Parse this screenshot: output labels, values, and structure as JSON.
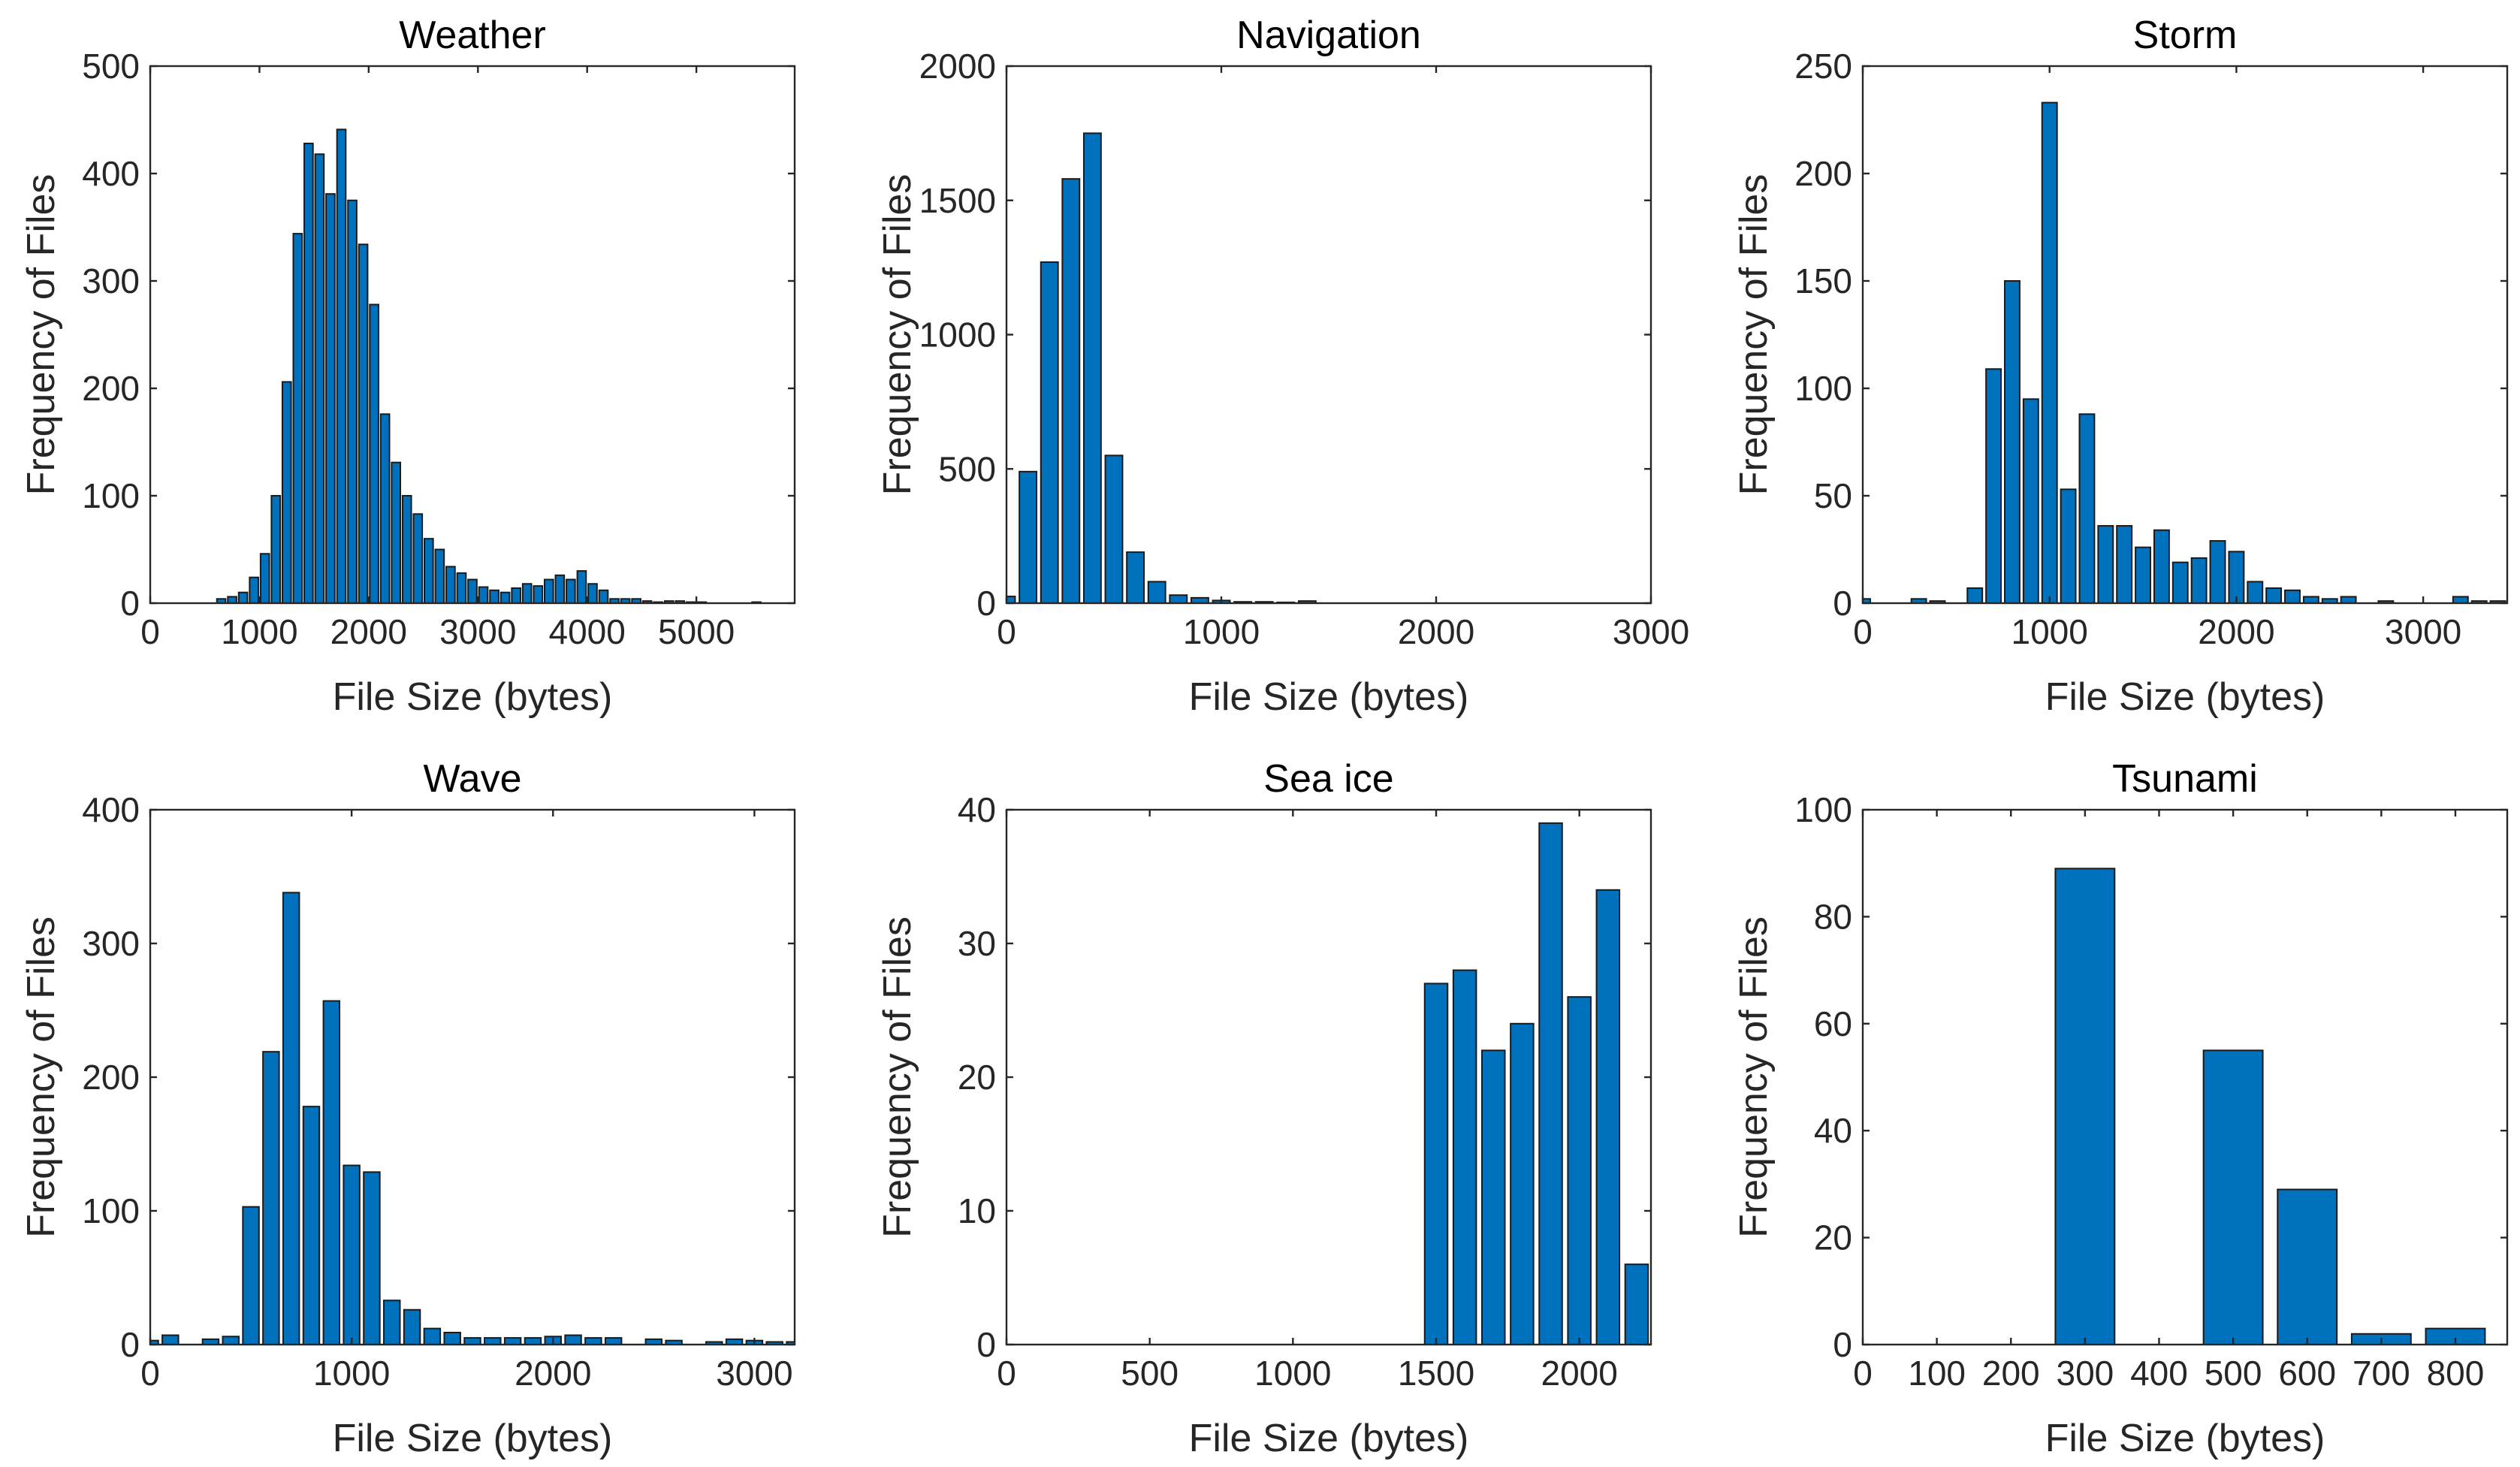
{
  "figure": {
    "bar_color": "#0072BD",
    "edge_color": "#1a1a1a",
    "axis_color": "#262626"
  },
  "chart_data": [
    {
      "type": "bar",
      "title": "Weather",
      "xlabel": "File Size (bytes)",
      "ylabel": "Frequency of Files",
      "xlim": [
        0,
        5900
      ],
      "ylim": [
        0,
        500
      ],
      "xticks": [
        0,
        1000,
        2000,
        3000,
        4000,
        5000
      ],
      "xtick_labels": [
        "0",
        "1000",
        "2000",
        "3000",
        "4000",
        "5000"
      ],
      "yticks": [
        0,
        100,
        200,
        300,
        400,
        500
      ],
      "ytick_labels": [
        "0",
        "100",
        "200",
        "300",
        "400",
        "500"
      ],
      "bin_width": 100,
      "x": [
        650,
        750,
        850,
        950,
        1050,
        1150,
        1250,
        1350,
        1450,
        1550,
        1650,
        1750,
        1850,
        1950,
        2050,
        2150,
        2250,
        2350,
        2450,
        2550,
        2650,
        2750,
        2850,
        2950,
        3050,
        3150,
        3250,
        3350,
        3450,
        3550,
        3650,
        3750,
        3850,
        3950,
        4050,
        4150,
        4250,
        4350,
        4450,
        4550,
        4650,
        4750,
        4850,
        4950,
        5050,
        5550
      ],
      "values": [
        4,
        6,
        10,
        24,
        46,
        100,
        206,
        344,
        428,
        418,
        381,
        441,
        375,
        334,
        278,
        176,
        131,
        100,
        83,
        60,
        50,
        34,
        28,
        22,
        15,
        12,
        10,
        14,
        18,
        16,
        22,
        26,
        22,
        30,
        18,
        12,
        4,
        4,
        4,
        2,
        1,
        2,
        2,
        1,
        1,
        1
      ]
    },
    {
      "type": "bar",
      "title": "Navigation",
      "xlabel": "File Size (bytes)",
      "ylabel": "Frequency of Files",
      "xlim": [
        0,
        3000
      ],
      "ylim": [
        0,
        2000
      ],
      "xticks": [
        0,
        1000,
        2000,
        3000
      ],
      "xtick_labels": [
        "0",
        "1000",
        "2000",
        "3000"
      ],
      "yticks": [
        0,
        500,
        1000,
        1500,
        2000
      ],
      "ytick_labels": [
        "0",
        "500",
        "1000",
        "1500",
        "2000"
      ],
      "bin_width": 100,
      "x": [
        0,
        100,
        200,
        300,
        400,
        500,
        600,
        700,
        800,
        900,
        1000,
        1100,
        1200,
        1300,
        1400
      ],
      "values": [
        25,
        490,
        1270,
        1580,
        1750,
        550,
        190,
        80,
        30,
        20,
        10,
        5,
        5,
        3,
        8
      ]
    },
    {
      "type": "bar",
      "title": "Storm",
      "xlabel": "File Size (bytes)",
      "ylabel": "Frequency of Files",
      "xlim": [
        0,
        3450
      ],
      "ylim": [
        0,
        250
      ],
      "xticks": [
        0,
        1000,
        2000,
        3000
      ],
      "xtick_labels": [
        "0",
        "1000",
        "2000",
        "3000"
      ],
      "yticks": [
        0,
        50,
        100,
        150,
        200,
        250
      ],
      "ytick_labels": [
        "0",
        "50",
        "100",
        "150",
        "200",
        "250"
      ],
      "bin_width": 100,
      "x": [
        0,
        300,
        400,
        600,
        700,
        800,
        900,
        1000,
        1100,
        1200,
        1300,
        1400,
        1500,
        1600,
        1700,
        1800,
        1900,
        2000,
        2100,
        2200,
        2300,
        2400,
        2500,
        2600,
        2800,
        3200,
        3300,
        3400
      ],
      "values": [
        2,
        2,
        1,
        7,
        109,
        150,
        95,
        233,
        53,
        88,
        36,
        36,
        26,
        34,
        19,
        21,
        29,
        24,
        10,
        7,
        6,
        3,
        2,
        3,
        1,
        3,
        1,
        1
      ]
    },
    {
      "type": "bar",
      "title": "Wave",
      "xlabel": "File Size (bytes)",
      "ylabel": "Frequency of Files",
      "xlim": [
        0,
        3200
      ],
      "ylim": [
        0,
        400
      ],
      "xticks": [
        0,
        1000,
        2000,
        3000
      ],
      "xtick_labels": [
        "0",
        "1000",
        "2000",
        "3000"
      ],
      "yticks": [
        0,
        100,
        200,
        300,
        400
      ],
      "ytick_labels": [
        "0",
        "100",
        "200",
        "300",
        "400"
      ],
      "bin_width": 100,
      "x": [
        0,
        100,
        300,
        400,
        500,
        600,
        700,
        800,
        900,
        1000,
        1100,
        1200,
        1300,
        1400,
        1500,
        1600,
        1700,
        1800,
        1900,
        2000,
        2100,
        2200,
        2300,
        2500,
        2600,
        2800,
        2900,
        3000,
        3100,
        3200
      ],
      "values": [
        3,
        7,
        4,
        6,
        103,
        219,
        338,
        178,
        257,
        134,
        129,
        33,
        26,
        12,
        9,
        5,
        5,
        5,
        5,
        6,
        7,
        5,
        5,
        4,
        3,
        2,
        4,
        3,
        2,
        2
      ]
    },
    {
      "type": "bar",
      "title": "Sea ice",
      "xlabel": "File Size (bytes)",
      "ylabel": "Frequency of Files",
      "xlim": [
        0,
        2250
      ],
      "ylim": [
        0,
        40
      ],
      "xticks": [
        0,
        500,
        1000,
        1500,
        2000
      ],
      "xtick_labels": [
        "0",
        "500",
        "1000",
        "1500",
        "2000"
      ],
      "yticks": [
        0,
        10,
        20,
        30,
        40
      ],
      "ytick_labels": [
        "0",
        "10",
        "20",
        "30",
        "40"
      ],
      "bin_width": 100,
      "x": [
        1500,
        1600,
        1700,
        1800,
        1900,
        2000,
        2100,
        2200
      ],
      "values": [
        27,
        28,
        22,
        24,
        39,
        26,
        34,
        6
      ]
    },
    {
      "type": "bar",
      "title": "Tsunami",
      "xlabel": "File Size (bytes)",
      "ylabel": "Frequency of Files",
      "xlim": [
        0,
        870
      ],
      "ylim": [
        0,
        100
      ],
      "xticks": [
        0,
        100,
        200,
        300,
        400,
        500,
        600,
        700,
        800
      ],
      "xtick_labels": [
        "0",
        "100",
        "200",
        "300",
        "400",
        "500",
        "600",
        "700",
        "800"
      ],
      "yticks": [
        0,
        20,
        40,
        60,
        80,
        100
      ],
      "ytick_labels": [
        "0",
        "20",
        "40",
        "60",
        "80",
        "100"
      ],
      "bin_width": 100,
      "x": [
        300,
        500,
        600,
        700,
        800
      ],
      "values": [
        89,
        55,
        29,
        2,
        3
      ]
    }
  ]
}
